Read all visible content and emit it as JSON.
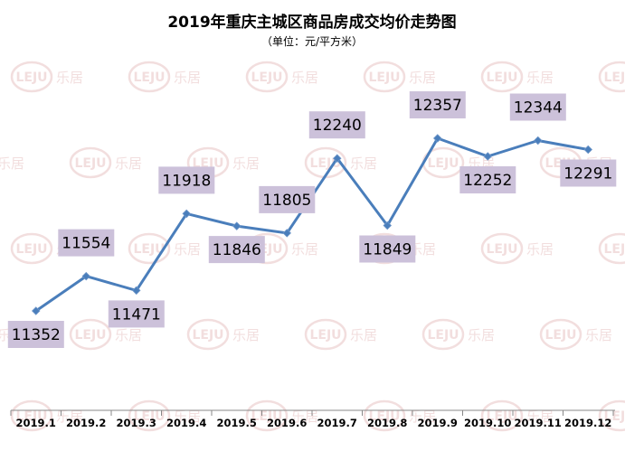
{
  "watermark": {
    "logo_text": "LEJU",
    "brand_text": "乐居"
  },
  "chart_data": {
    "type": "line",
    "title": "2019年重庆主城区商品房成交均价走势图",
    "subtitle": "（单位：元/平方米）",
    "categories": [
      "2019.1",
      "2019.2",
      "2019.3",
      "2019.4",
      "2019.5",
      "2019.6",
      "2019.7",
      "2019.8",
      "2019.9",
      "2019.10",
      "2019.11",
      "2019.12"
    ],
    "values": [
      11352,
      11554,
      11471,
      11918,
      11846,
      11805,
      12240,
      11849,
      12357,
      12252,
      12344,
      12291
    ],
    "ylim": [
      11000,
      12500
    ],
    "grid": false,
    "legend": "none",
    "colors": {
      "line": "#4a7ebb",
      "marker": "#4a7ebb",
      "label_bg": "#ccc1da",
      "axis": "#888888"
    }
  }
}
